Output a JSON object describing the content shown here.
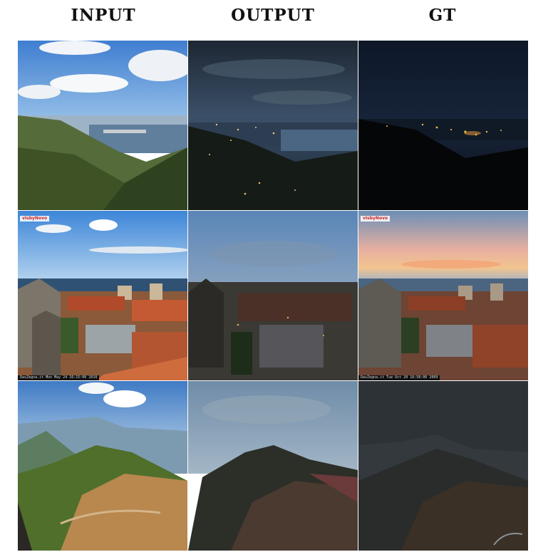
{
  "columns": {
    "input": "INPUT",
    "output": "OUTPUT",
    "gt": "GT"
  },
  "rows": [
    {
      "scene": "coastal-hillside-city"
    },
    {
      "scene": "old-town-sea-view",
      "logo": "vIsbyNovo",
      "stamp_input": "DasZegna.it Mon May 24 16:15:00 2010",
      "stamp_gt": "DasZegna.it Tue Oct 20 16:58:00 2009"
    },
    {
      "scene": "mountain-ridge"
    }
  ]
}
